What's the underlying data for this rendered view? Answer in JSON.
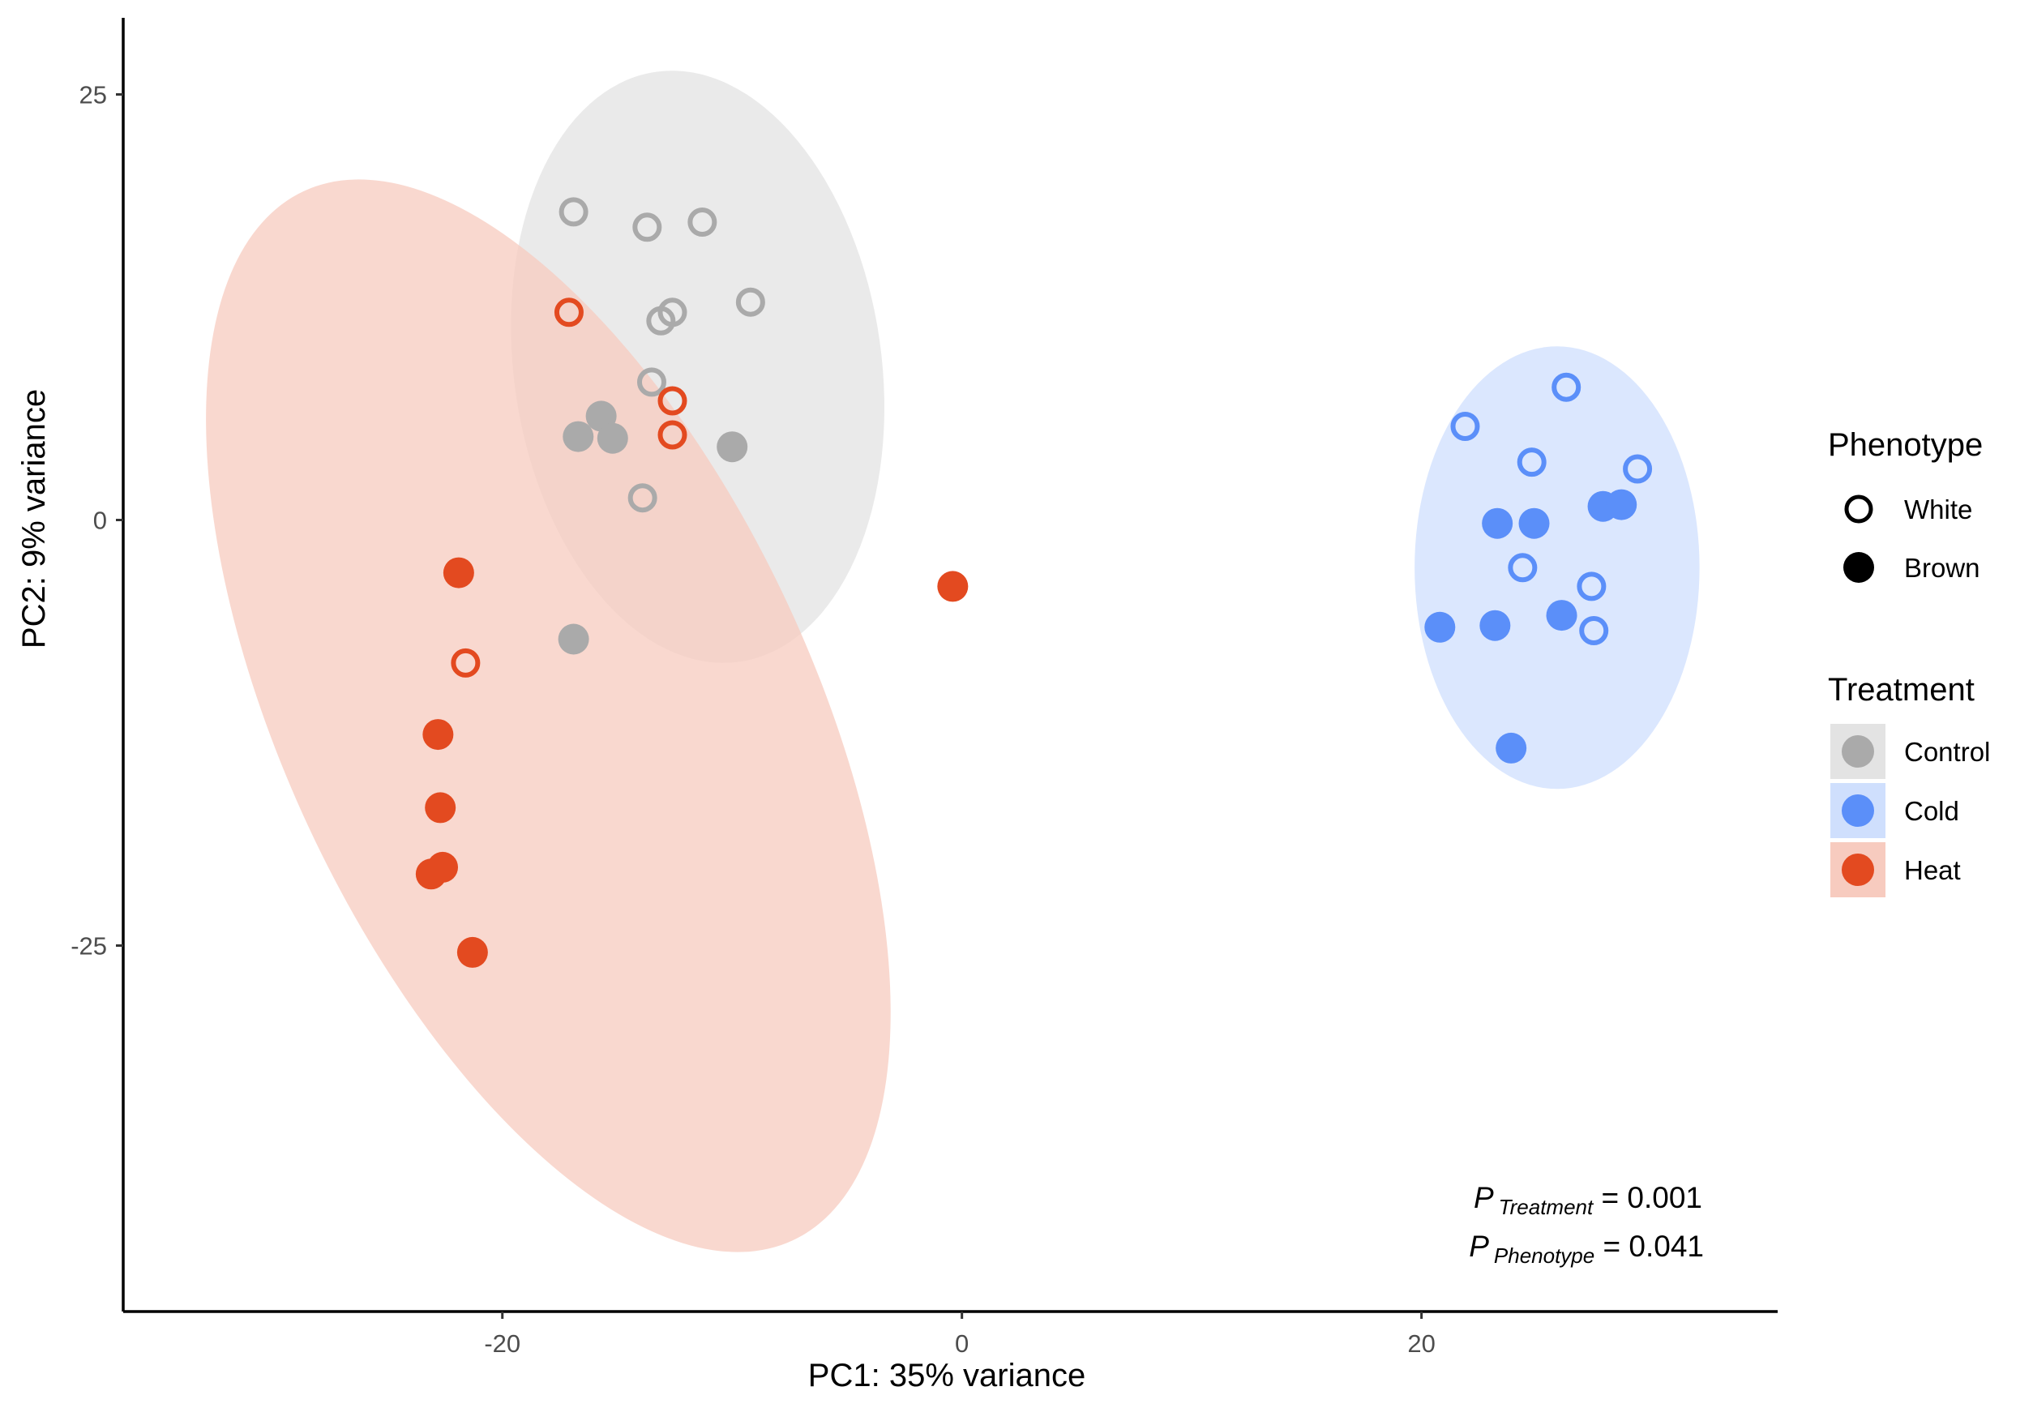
{
  "chart_data": {
    "type": "scatter",
    "xlabel": "PC1: 35% variance",
    "ylabel": "PC2: 9% variance",
    "xlim": [
      -36.5,
      35.5
    ],
    "ylim": [
      -46.5,
      29.5
    ],
    "x_ticks": [
      -20,
      0,
      20
    ],
    "y_ticks": [
      -25,
      0,
      25
    ],
    "x_tick_labels": [
      "-20",
      "0",
      "20"
    ],
    "y_tick_labels": [
      "-25",
      "0",
      "25"
    ],
    "grid": false,
    "legend_placement": "right",
    "colors": {
      "Control": "#aaaaaa",
      "Cold": "#5b8ff9",
      "Heat": "#e34a20",
      "Control_fill": "#e3e3e3",
      "Cold_fill": "#cfdffd",
      "Heat_fill": "#f7cbbf"
    },
    "legends": {
      "phenotype": {
        "title": "Phenotype",
        "items": [
          {
            "label": "White",
            "shape": "open-circle"
          },
          {
            "label": "Brown",
            "shape": "filled-circle"
          }
        ]
      },
      "treatment": {
        "title": "Treatment",
        "items": [
          {
            "label": "Control",
            "group": "Control"
          },
          {
            "label": "Cold",
            "group": "Cold"
          },
          {
            "label": "Heat",
            "group": "Heat"
          }
        ]
      }
    },
    "ellipses": [
      {
        "group": "Control",
        "center": [
          -11.5,
          9.0
        ],
        "semi_axes": [
          8.0,
          17.5
        ],
        "angle_deg": -8
      },
      {
        "group": "Heat",
        "center": [
          -18.0,
          -11.5
        ],
        "semi_axes": [
          11.5,
          34.0
        ],
        "angle_deg": -25
      },
      {
        "group": "Cold",
        "center": [
          25.9,
          -2.8
        ],
        "semi_axes": [
          6.2,
          13.0
        ],
        "angle_deg": 0
      }
    ],
    "series": [
      {
        "treatment": "Control",
        "phenotype": "White",
        "points": [
          [
            -16.9,
            18.1
          ],
          [
            -13.7,
            17.2
          ],
          [
            -11.3,
            17.5
          ],
          [
            -9.2,
            12.8
          ],
          [
            -12.6,
            12.2
          ],
          [
            -13.1,
            11.7
          ],
          [
            -13.5,
            8.1
          ],
          [
            -13.9,
            1.3
          ]
        ]
      },
      {
        "treatment": "Control",
        "phenotype": "Brown",
        "points": [
          [
            -15.7,
            6.1
          ],
          [
            -16.7,
            4.9
          ],
          [
            -15.2,
            4.8
          ],
          [
            -10.0,
            4.3
          ],
          [
            -16.9,
            -7.0
          ]
        ]
      },
      {
        "treatment": "Heat",
        "phenotype": "White",
        "points": [
          [
            -17.1,
            12.2
          ],
          [
            -12.6,
            7.0
          ],
          [
            -12.6,
            5.0
          ],
          [
            -21.6,
            -8.4
          ]
        ]
      },
      {
        "treatment": "Heat",
        "phenotype": "Brown",
        "points": [
          [
            -21.9,
            -3.1
          ],
          [
            -22.8,
            -12.6
          ],
          [
            -22.7,
            -16.9
          ],
          [
            -22.6,
            -20.4
          ],
          [
            -23.1,
            -20.8
          ],
          [
            -21.3,
            -25.4
          ],
          [
            -0.4,
            -3.9
          ]
        ]
      },
      {
        "treatment": "Cold",
        "phenotype": "White",
        "points": [
          [
            26.3,
            7.8
          ],
          [
            21.9,
            5.5
          ],
          [
            24.8,
            3.4
          ],
          [
            29.4,
            3.0
          ],
          [
            24.4,
            -2.8
          ],
          [
            27.4,
            -3.9
          ],
          [
            27.5,
            -6.5
          ]
        ]
      },
      {
        "treatment": "Cold",
        "phenotype": "Brown",
        "points": [
          [
            23.3,
            -0.2
          ],
          [
            24.9,
            -0.2
          ],
          [
            27.9,
            0.8
          ],
          [
            28.7,
            0.9
          ],
          [
            26.1,
            -5.6
          ],
          [
            20.8,
            -6.3
          ],
          [
            23.2,
            -6.2
          ],
          [
            23.9,
            -13.4
          ]
        ]
      }
    ],
    "annotations": {
      "p_treatment_symbol": "P",
      "p_treatment_subscript": "Treatment",
      "p_treatment_value": " = 0.001",
      "p_phenotype_symbol": "P",
      "p_phenotype_subscript": "Phenotype",
      "p_phenotype_value": " = 0.041"
    }
  }
}
